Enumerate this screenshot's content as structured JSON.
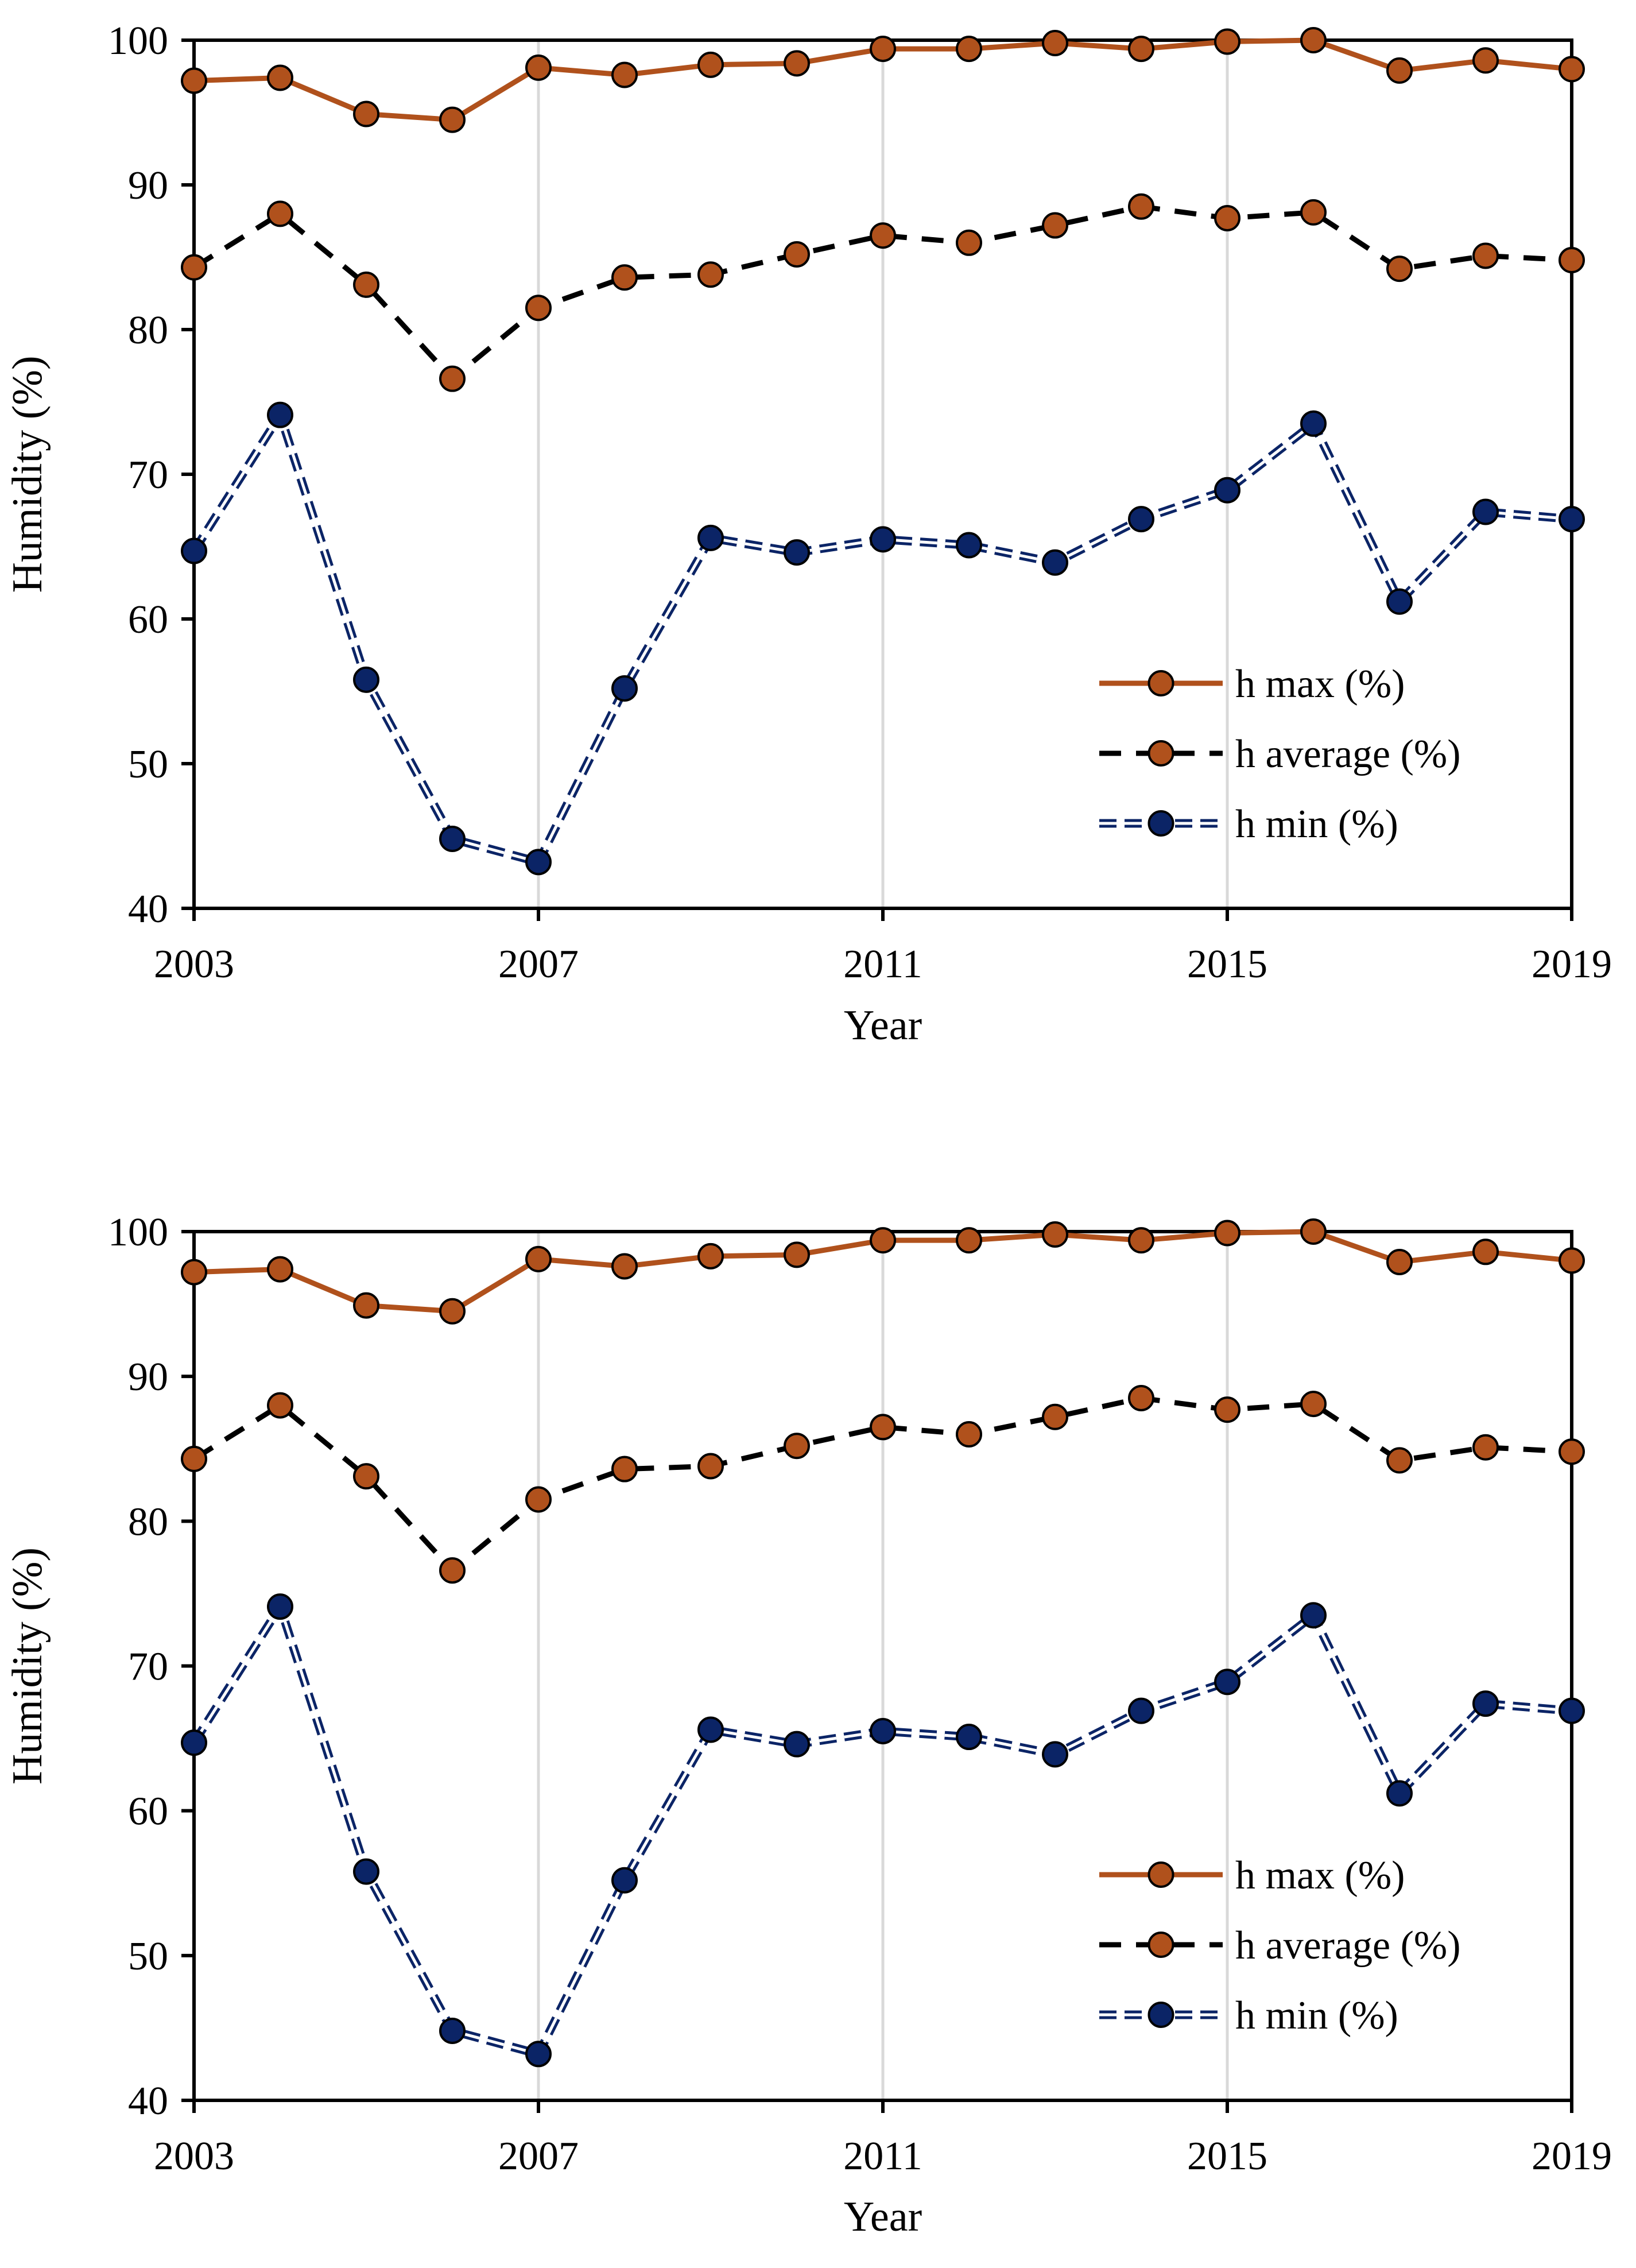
{
  "chart_data": [
    {
      "type": "line",
      "title": "",
      "xlabel": "Year",
      "ylabel": "Humidity (%)",
      "xlim": [
        2003,
        2019
      ],
      "ylim": [
        40,
        100
      ],
      "x_ticks": [
        "2003",
        "2007",
        "2011",
        "2015",
        "2019"
      ],
      "y_ticks": [
        "40",
        "50",
        "60",
        "70",
        "80",
        "90",
        "100"
      ],
      "grid": "vertical",
      "legend_position": "bottom-right",
      "x": [
        2003,
        2004,
        2005,
        2006,
        2007,
        2008,
        2009,
        2010,
        2011,
        2012,
        2013,
        2014,
        2015,
        2016,
        2017,
        2018,
        2019
      ],
      "series": [
        {
          "name": "h max (%)",
          "color": "#B0511C",
          "style": "solid",
          "values": [
            97.2,
            97.4,
            94.9,
            94.5,
            98.1,
            97.6,
            98.3,
            98.4,
            99.4,
            99.4,
            99.8,
            99.4,
            99.9,
            100.0,
            97.9,
            98.6,
            98.0
          ]
        },
        {
          "name": "h average (%)",
          "color": "#000000",
          "style": "dashed",
          "values": [
            84.3,
            88.0,
            83.1,
            76.6,
            81.5,
            83.6,
            83.8,
            85.2,
            86.5,
            86.0,
            87.2,
            88.5,
            87.7,
            88.1,
            84.2,
            85.1,
            84.8
          ]
        },
        {
          "name": "h min (%)",
          "color": "#0B2466",
          "style": "double-dashed",
          "values": [
            64.7,
            74.1,
            55.8,
            44.8,
            43.2,
            55.2,
            65.6,
            64.6,
            65.5,
            65.1,
            63.9,
            66.9,
            68.9,
            73.5,
            61.2,
            67.4,
            66.9
          ]
        }
      ]
    },
    {
      "type": "line",
      "title": "",
      "xlabel": "Year",
      "ylabel": "Humidity (%)",
      "xlim": [
        2003,
        2019
      ],
      "ylim": [
        40,
        100
      ],
      "x_ticks": [
        "2003",
        "2007",
        "2011",
        "2015",
        "2019"
      ],
      "y_ticks": [
        "40",
        "50",
        "60",
        "70",
        "80",
        "90",
        "100"
      ],
      "grid": "vertical",
      "legend_position": "bottom-right",
      "x": [
        2003,
        2004,
        2005,
        2006,
        2007,
        2008,
        2009,
        2010,
        2011,
        2012,
        2013,
        2014,
        2015,
        2016,
        2017,
        2018,
        2019
      ],
      "series": [
        {
          "name": "h max (%)",
          "color": "#B0511C",
          "style": "solid",
          "values": [
            97.2,
            97.4,
            94.9,
            94.5,
            98.1,
            97.6,
            98.3,
            98.4,
            99.4,
            99.4,
            99.8,
            99.4,
            99.9,
            100.0,
            97.9,
            98.6,
            98.0
          ]
        },
        {
          "name": "h average (%)",
          "color": "#000000",
          "style": "dashed",
          "values": [
            84.3,
            88.0,
            83.1,
            76.6,
            81.5,
            83.6,
            83.8,
            85.2,
            86.5,
            86.0,
            87.2,
            88.5,
            87.7,
            88.1,
            84.2,
            85.1,
            84.8
          ]
        },
        {
          "name": "h min (%)",
          "color": "#0B2466",
          "style": "double-dashed",
          "values": [
            64.7,
            74.1,
            55.8,
            44.8,
            43.2,
            55.2,
            65.6,
            64.6,
            65.5,
            65.1,
            63.9,
            66.9,
            68.9,
            73.5,
            61.2,
            67.4,
            66.9
          ]
        }
      ]
    }
  ]
}
